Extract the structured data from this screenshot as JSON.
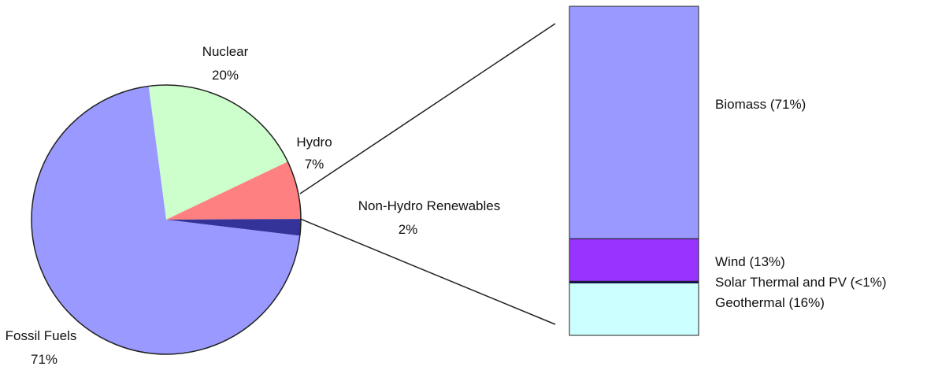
{
  "chart_data": [
    {
      "type": "pie",
      "slices": [
        {
          "name": "Nuclear",
          "value": 20,
          "value_label": "20%",
          "color": "#ccffcc"
        },
        {
          "name": "Hydro",
          "value": 7,
          "value_label": "7%",
          "color": "#ff8080"
        },
        {
          "name": "Non-Hydro Renewables",
          "value": 2,
          "value_label": "2%",
          "color": "#333399"
        },
        {
          "name": "Fossil Fuels",
          "value": 71,
          "value_label": "71%",
          "color": "#9999ff"
        }
      ]
    },
    {
      "type": "bar",
      "stacked": true,
      "categories": [
        "Non-Hydro Renewables"
      ],
      "series": [
        {
          "name": "Biomass",
          "value": 71,
          "label": "Biomass (71%)",
          "color": "#9999ff"
        },
        {
          "name": "Wind",
          "value": 13,
          "label": "Wind (13%)",
          "color": "#9933ff"
        },
        {
          "name": "Solar Thermal and PV",
          "value": 0.5,
          "label": "Solar Thermal and PV (<1%)",
          "color": "#000080"
        },
        {
          "name": "Geothermal",
          "value": 16,
          "label": "Geothermal (16%)",
          "color": "#ccffff"
        }
      ]
    }
  ],
  "colors": {
    "outline": "#222222",
    "connector": "#222222"
  }
}
